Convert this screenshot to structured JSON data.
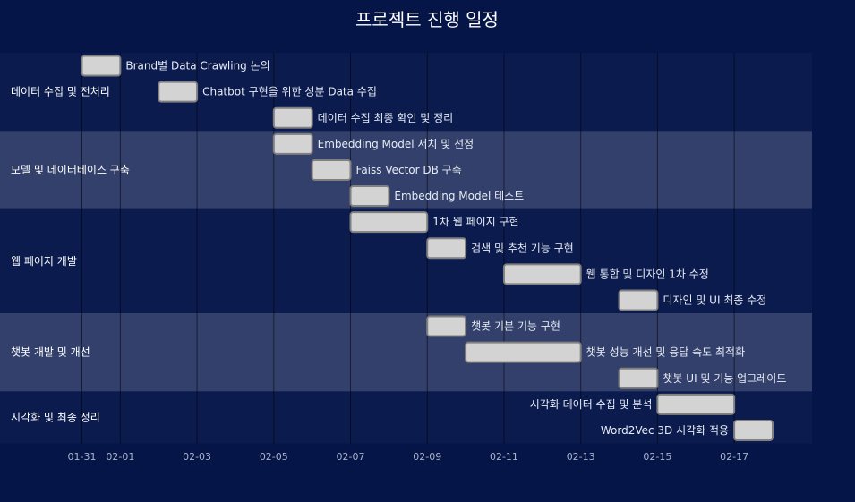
{
  "chart_data": {
    "type": "gantt",
    "title": "프로젝트 진행 일정",
    "colors": {
      "background": "#061547",
      "plot_background": "#0b1b4e",
      "band": "#33406b",
      "bar_fill": "#d3d3d3",
      "bar_stroke": "#808080",
      "gridline": "#000000"
    },
    "x_ticks": [
      "01-31",
      "02-01",
      "02-03",
      "02-05",
      "02-07",
      "02-09",
      "02-11",
      "02-13",
      "02-15",
      "02-17"
    ],
    "groups": [
      {
        "name": "데이터 수집 및 전처리",
        "tasks": [
          {
            "label": "Brand별 Data Crawling 논의",
            "start": "01-31",
            "end": "02-01"
          },
          {
            "label": "Chatbot 구현을 위한 성분 Data 수집",
            "start": "02-02",
            "end": "02-03"
          },
          {
            "label": "데이터 수집 최종 확인 및 정리",
            "start": "02-05",
            "end": "02-06"
          }
        ]
      },
      {
        "name": "모델 및 데이터베이스 구축",
        "tasks": [
          {
            "label": "Embedding Model 서치 및 선정",
            "start": "02-05",
            "end": "02-06"
          },
          {
            "label": "Faiss Vector DB 구축",
            "start": "02-06",
            "end": "02-07"
          },
          {
            "label": "Embedding Model 테스트",
            "start": "02-07",
            "end": "02-08"
          }
        ]
      },
      {
        "name": "웹 페이지 개발",
        "tasks": [
          {
            "label": "1차 웹 페이지 구현",
            "start": "02-07",
            "end": "02-09"
          },
          {
            "label": "검색 및 추천 기능 구현",
            "start": "02-09",
            "end": "02-10"
          },
          {
            "label": "웹 통합 및 디자인 1차 수정",
            "start": "02-11",
            "end": "02-13"
          },
          {
            "label": "디자인 및 UI 최종 수정",
            "start": "02-14",
            "end": "02-15"
          }
        ]
      },
      {
        "name": "챗봇 개발 및 개선",
        "tasks": [
          {
            "label": "챗봇 기본 기능 구현",
            "start": "02-09",
            "end": "02-10"
          },
          {
            "label": "챗봇 성능 개선 및 응답 속도 최적화",
            "start": "02-10",
            "end": "02-13"
          },
          {
            "label": "챗봇 UI 및 기능 업그레이드",
            "start": "02-14",
            "end": "02-15"
          }
        ]
      },
      {
        "name": "시각화 및 최종 정리",
        "tasks": [
          {
            "label": "시각화 데이터 수집 및 분석",
            "start": "02-15",
            "end": "02-17"
          },
          {
            "label": "Word2Vec 3D 시각화 적용",
            "start": "02-17",
            "end": "02-18"
          }
        ]
      }
    ]
  }
}
